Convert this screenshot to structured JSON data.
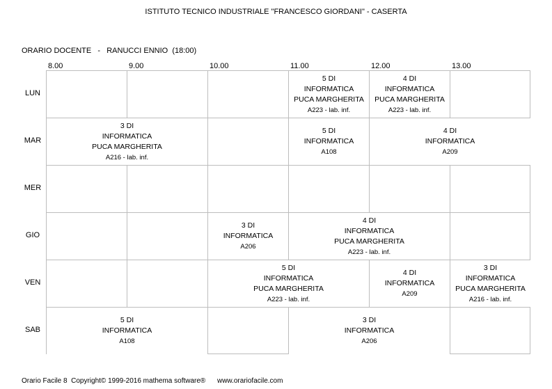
{
  "title": "ISTITUTO TECNICO INDUSTRIALE \"FRANCESCO GIORDANI\" - CASERTA",
  "teacher_line": "ORARIO DOCENTE   -   RANUCCI ENNIO  (18:00)",
  "times": [
    "8.00",
    "9.00",
    "10.00",
    "11.00",
    "12.00",
    "13.00"
  ],
  "days": [
    "LUN",
    "MAR",
    "MER",
    "GIO",
    "VEN",
    "SAB"
  ],
  "lessons": [
    {
      "day": 0,
      "start": 3,
      "span": 1,
      "lines": [
        "5 DI",
        "INFORMATICA",
        "PUCA MARGHERITA"
      ],
      "room": "A223 - lab. inf."
    },
    {
      "day": 0,
      "start": 4,
      "span": 1,
      "lines": [
        "4 DI",
        "INFORMATICA",
        "PUCA MARGHERITA"
      ],
      "room": "A223 - lab. inf."
    },
    {
      "day": 1,
      "start": 0,
      "span": 2,
      "lines": [
        "3 DI",
        "INFORMATICA",
        "PUCA MARGHERITA"
      ],
      "room": "A216 - lab. inf."
    },
    {
      "day": 1,
      "start": 3,
      "span": 1,
      "lines": [
        "5 DI",
        "INFORMATICA"
      ],
      "room": "A108"
    },
    {
      "day": 1,
      "start": 4,
      "span": 2,
      "lines": [
        "4 DI",
        "INFORMATICA"
      ],
      "room": "A209"
    },
    {
      "day": 3,
      "start": 2,
      "span": 1,
      "lines": [
        "3 DI",
        "INFORMATICA"
      ],
      "room": "A206"
    },
    {
      "day": 3,
      "start": 3,
      "span": 2,
      "lines": [
        "4 DI",
        "INFORMATICA",
        "PUCA MARGHERITA"
      ],
      "room": "A223 - lab. inf."
    },
    {
      "day": 4,
      "start": 2,
      "span": 2,
      "lines": [
        "5 DI",
        "INFORMATICA",
        "PUCA MARGHERITA"
      ],
      "room": "A223 - lab. inf."
    },
    {
      "day": 4,
      "start": 4,
      "span": 1,
      "lines": [
        "4 DI",
        "INFORMATICA"
      ],
      "room": "A209"
    },
    {
      "day": 4,
      "start": 5,
      "span": 1,
      "lines": [
        "3 DI",
        "INFORMATICA",
        "PUCA MARGHERITA"
      ],
      "room": "A216 - lab. inf."
    },
    {
      "day": 5,
      "start": 0,
      "span": 2,
      "lines": [
        "5 DI",
        "INFORMATICA"
      ],
      "room": "A108"
    },
    {
      "day": 5,
      "start": 3,
      "span": 2,
      "lines": [
        "3 DI",
        "INFORMATICA"
      ],
      "room": "A206"
    }
  ],
  "footer": "Orario Facile 8  Copyright© 1999-2016 mathema software®      www.orariofacile.com"
}
